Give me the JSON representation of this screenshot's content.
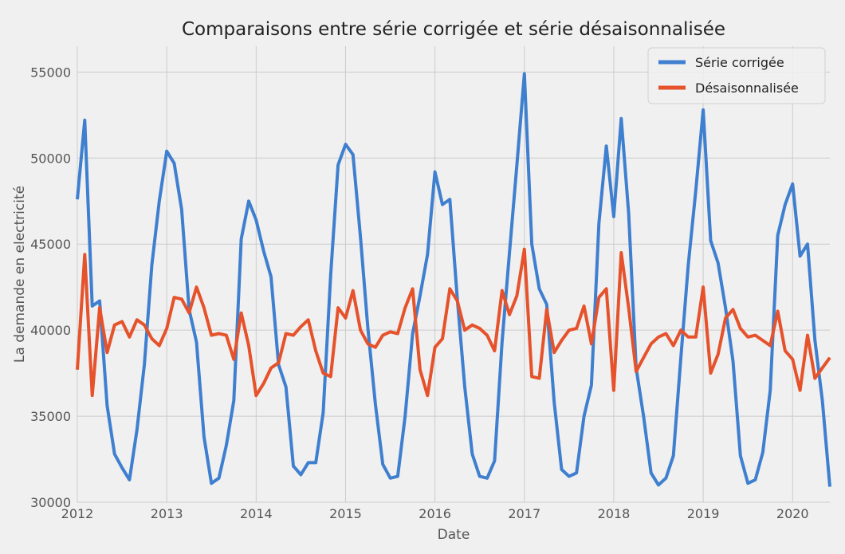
{
  "chart_data": {
    "type": "line",
    "title": "Comparaisons entre série corrigée et série désaisonnalisée",
    "xlabel": "Date",
    "ylabel": "La demande en electricité",
    "xlim": [
      2012.0,
      2020.4167
    ],
    "ylim": [
      30000,
      56500
    ],
    "x_ticks": [
      2012,
      2013,
      2014,
      2015,
      2016,
      2017,
      2018,
      2019,
      2020
    ],
    "y_ticks": [
      30000,
      35000,
      40000,
      45000,
      50000,
      55000
    ],
    "grid": true,
    "legend_position": "top-right",
    "x_start": "2012-01",
    "x_frequency": "monthly",
    "series": [
      {
        "name": "Série corrigée",
        "color": "#3f7fcf",
        "values": [
          47600,
          52200,
          41400,
          41700,
          35600,
          32800,
          32000,
          31300,
          34200,
          38000,
          43800,
          47500,
          50400,
          49700,
          47000,
          41200,
          39300,
          33800,
          31100,
          31400,
          33300,
          35900,
          45300,
          47500,
          46400,
          44600,
          43100,
          38000,
          36700,
          32100,
          31600,
          32300,
          32300,
          35200,
          43200,
          49600,
          50800,
          50200,
          45400,
          40100,
          35700,
          32200,
          31400,
          31500,
          35000,
          39800,
          42000,
          44400,
          49200,
          47300,
          47600,
          41800,
          36700,
          32800,
          31500,
          31400,
          32400,
          39300,
          44500,
          49600,
          54900,
          45000,
          42400,
          41500,
          35800,
          31900,
          31500,
          31700,
          35000,
          36800,
          46200,
          50700,
          46600,
          52300,
          46800,
          37800,
          35000,
          31700,
          31000,
          31400,
          32700,
          38400,
          43800,
          48100,
          52800,
          45200,
          43900,
          41300,
          38200,
          32700,
          31100,
          31300,
          32900,
          36500,
          45500,
          47300,
          48500,
          44300,
          45000,
          39400,
          35900,
          30900
        ]
      },
      {
        "name": "Désaisonnalisée",
        "color": "#e5522b",
        "values": [
          37700,
          44400,
          36200,
          41300,
          38700,
          40300,
          40500,
          39600,
          40600,
          40300,
          39500,
          39100,
          40100,
          41900,
          41800,
          41000,
          42500,
          41300,
          39700,
          39800,
          39700,
          38300,
          41000,
          39100,
          36200,
          36900,
          37800,
          38100,
          39800,
          39700,
          40200,
          40600,
          38800,
          37500,
          37300,
          41300,
          40700,
          42300,
          40000,
          39200,
          39000,
          39700,
          39900,
          39800,
          41300,
          42400,
          37700,
          36200,
          39000,
          39500,
          42400,
          41700,
          40000,
          40300,
          40100,
          39700,
          38800,
          42300,
          40900,
          42000,
          44700,
          37300,
          37200,
          41200,
          38700,
          39400,
          40000,
          40100,
          41400,
          39200,
          41900,
          42400,
          36500,
          44500,
          41300,
          37600,
          38400,
          39200,
          39600,
          39800,
          39100,
          40000,
          39600,
          39600,
          42500,
          37500,
          38600,
          40700,
          41200,
          40100,
          39600,
          39700,
          39400,
          39100,
          41100,
          38800,
          38300,
          36500,
          39700,
          37200,
          37800,
          38400
        ]
      }
    ]
  }
}
